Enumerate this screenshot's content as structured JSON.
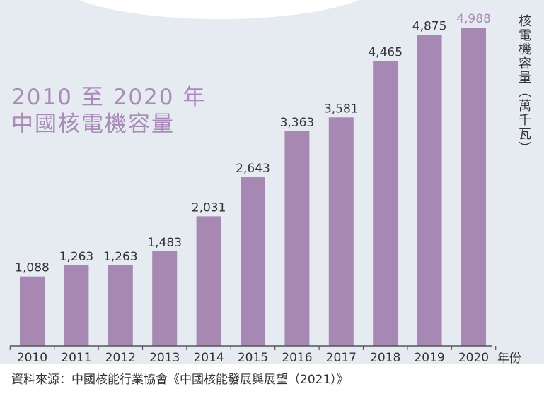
{
  "chart_data": {
    "type": "bar",
    "title": "2010 至 2020 年",
    "subtitle": "中國核電機容量",
    "ylabel": "核電機容量（萬千瓦）",
    "xlabel": "年份",
    "categories": [
      "2010",
      "2011",
      "2012",
      "2013",
      "2014",
      "2015",
      "2016",
      "2017",
      "2018",
      "2019",
      "2020"
    ],
    "values": [
      1088,
      1263,
      1263,
      1483,
      2031,
      2643,
      3363,
      3581,
      4465,
      4875,
      4988
    ],
    "value_labels": [
      "1,088",
      "1,263",
      "1,263",
      "1,483",
      "2,031",
      "2,643",
      "3,363",
      "3,581",
      "4,465",
      "4,875",
      "4,988"
    ],
    "ylim": [
      0,
      5000
    ],
    "grid": false,
    "colors": {
      "bar": "#a688b2",
      "highlight_label": "#a98bb8",
      "label": "#333333",
      "background": "#e6ebf1",
      "axis": "#555555"
    },
    "source": "資料來源：中國核能行業協會《中國核能發展與展望（2021）》"
  }
}
